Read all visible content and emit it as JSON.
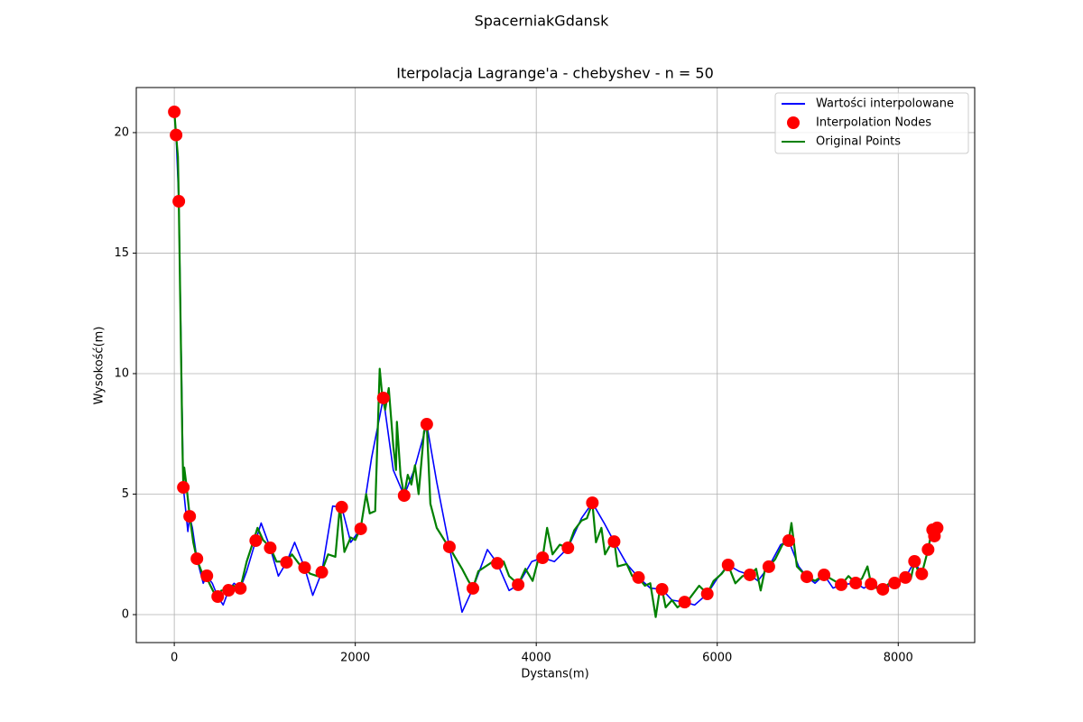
{
  "chart_data": {
    "type": "line",
    "suptitle": "SpacerniakGdansk",
    "title": "Iterpolacja Lagrange'a - chebyshev - n = 50",
    "xlabel": "Dystans(m)",
    "ylabel": "Wysokość(m)",
    "xlim": [
      -420,
      8845
    ],
    "ylim": [
      -1.16,
      21.87
    ],
    "xticks": [
      0,
      2000,
      4000,
      6000,
      8000
    ],
    "yticks": [
      0,
      5,
      10,
      15,
      20
    ],
    "grid": true,
    "legend": "upper right",
    "series": [
      {
        "name": "Wartości interpolowane",
        "color": "#0000ff",
        "mark": "line",
        "x": [
          0,
          20,
          50,
          100,
          150,
          170,
          200,
          250,
          320,
          360,
          420,
          480,
          540,
          600,
          660,
          730,
          800,
          900,
          960,
          1060,
          1150,
          1240,
          1330,
          1440,
          1530,
          1630,
          1750,
          1850,
          1950,
          2060,
          2180,
          2310,
          2420,
          2540,
          2650,
          2790,
          2900,
          3040,
          3180,
          3300,
          3460,
          3570,
          3700,
          3800,
          3950,
          4070,
          4200,
          4350,
          4500,
          4620,
          4750,
          4860,
          5000,
          5130,
          5260,
          5390,
          5500,
          5640,
          5750,
          5890,
          6000,
          6120,
          6240,
          6360,
          6450,
          6570,
          6700,
          6790,
          6900,
          6990,
          7080,
          7180,
          7280,
          7370,
          7530,
          7620,
          7700,
          7830,
          7960,
          8080,
          8180,
          8260,
          8330,
          8380,
          8400,
          8430
        ],
        "values": [
          20.86,
          19.9,
          17.15,
          5.28,
          3.45,
          4.08,
          3.6,
          2.32,
          1.3,
          1.61,
          1.3,
          0.75,
          0.4,
          1.01,
          1.3,
          1.09,
          1.8,
          3.07,
          3.8,
          2.77,
          1.6,
          2.17,
          3.0,
          1.95,
          0.8,
          1.76,
          4.5,
          4.46,
          3.0,
          3.56,
          6.5,
          8.99,
          6.0,
          4.94,
          6.0,
          7.9,
          5.5,
          2.81,
          0.1,
          1.09,
          2.7,
          2.13,
          1.0,
          1.24,
          2.2,
          2.36,
          2.2,
          2.77,
          4.0,
          4.64,
          3.8,
          3.03,
          2.1,
          1.54,
          1.1,
          1.05,
          0.6,
          0.52,
          0.4,
          0.86,
          1.5,
          2.06,
          1.8,
          1.65,
          1.4,
          1.99,
          2.9,
          3.07,
          2.0,
          1.57,
          1.3,
          1.65,
          1.1,
          1.24,
          1.31,
          1.1,
          1.27,
          1.05,
          1.31,
          1.54,
          2.21,
          1.69,
          2.7,
          3.52,
          3.26,
          3.6
        ]
      },
      {
        "name": "Interpolation Nodes",
        "color": "#ff0000",
        "mark": "scatter",
        "x": [
          0,
          20,
          50,
          100,
          170,
          250,
          360,
          480,
          600,
          730,
          900,
          1060,
          1240,
          1440,
          1630,
          1850,
          2060,
          2310,
          2540,
          2790,
          3040,
          3300,
          3570,
          3800,
          4070,
          4350,
          4620,
          4860,
          5130,
          5390,
          5640,
          5890,
          6120,
          6360,
          6570,
          6790,
          6990,
          7180,
          7370,
          7530,
          7700,
          7830,
          7960,
          8080,
          8180,
          8260,
          8330,
          8380,
          8400,
          8430
        ],
        "values": [
          20.86,
          19.9,
          17.15,
          5.28,
          4.08,
          2.32,
          1.61,
          0.75,
          1.01,
          1.09,
          3.07,
          2.77,
          2.17,
          1.95,
          1.76,
          4.46,
          3.56,
          8.99,
          4.94,
          7.9,
          2.81,
          1.09,
          2.13,
          1.24,
          2.36,
          2.77,
          4.64,
          3.03,
          1.54,
          1.05,
          0.52,
          0.86,
          2.06,
          1.65,
          1.99,
          3.07,
          1.57,
          1.65,
          1.24,
          1.31,
          1.27,
          1.05,
          1.31,
          1.54,
          2.21,
          1.69,
          2.7,
          3.52,
          3.26,
          3.6
        ]
      },
      {
        "name": "Original Points",
        "color": "#008000",
        "mark": "line",
        "x": [
          0,
          20,
          40,
          50,
          70,
          90,
          100,
          110,
          130,
          170,
          210,
          250,
          300,
          350,
          400,
          440,
          480,
          520,
          600,
          650,
          730,
          800,
          870,
          920,
          980,
          1060,
          1130,
          1200,
          1240,
          1300,
          1380,
          1440,
          1500,
          1580,
          1630,
          1700,
          1780,
          1830,
          1880,
          1950,
          2000,
          2060,
          2120,
          2160,
          2220,
          2270,
          2300,
          2330,
          2370,
          2420,
          2450,
          2460,
          2500,
          2540,
          2580,
          2620,
          2660,
          2700,
          2760,
          2790,
          2830,
          2900,
          3000,
          3040,
          3100,
          3180,
          3250,
          3300,
          3360,
          3440,
          3520,
          3570,
          3640,
          3700,
          3760,
          3800,
          3880,
          3960,
          4030,
          4070,
          4120,
          4180,
          4260,
          4350,
          4420,
          4500,
          4560,
          4620,
          4660,
          4720,
          4760,
          4820,
          4860,
          4900,
          5000,
          5060,
          5130,
          5200,
          5260,
          5320,
          5360,
          5390,
          5430,
          5500,
          5560,
          5640,
          5700,
          5800,
          5890,
          5960,
          6050,
          6120,
          6200,
          6280,
          6360,
          6430,
          6480,
          6540,
          6570,
          6640,
          6720,
          6790,
          6820,
          6880,
          6990,
          7080,
          7180,
          7250,
          7370,
          7450,
          7530,
          7600,
          7660,
          7700,
          7760,
          7830,
          7900,
          7960,
          8080,
          8140,
          8180,
          8230,
          8260,
          8330,
          8360,
          8380,
          8400,
          8430
        ],
        "values": [
          20.9,
          19.9,
          19.0,
          17.1,
          12,
          7,
          5.3,
          6.1,
          5.5,
          4.1,
          3.0,
          2.3,
          1.8,
          1.6,
          1.2,
          0.9,
          0.75,
          1.0,
          1.0,
          1.2,
          1.1,
          2.2,
          3.0,
          3.6,
          3.1,
          2.8,
          2.2,
          2.2,
          2.2,
          2.5,
          2.1,
          1.95,
          1.7,
          1.6,
          1.8,
          2.5,
          2.4,
          4.5,
          2.6,
          3.2,
          3.1,
          3.6,
          5.0,
          4.2,
          4.3,
          10.2,
          9.0,
          8.5,
          9.4,
          7.0,
          6.0,
          8.0,
          5.8,
          4.94,
          5.8,
          5.4,
          6.2,
          5.0,
          7.6,
          7.9,
          4.6,
          3.6,
          3.0,
          2.8,
          2.4,
          1.9,
          1.4,
          1.1,
          1.8,
          2.0,
          2.2,
          2.13,
          2.2,
          1.6,
          1.4,
          1.24,
          1.9,
          1.4,
          2.4,
          2.36,
          3.6,
          2.5,
          2.9,
          2.77,
          3.5,
          3.9,
          4.0,
          4.64,
          3.0,
          3.6,
          2.5,
          2.9,
          3.1,
          2.0,
          2.1,
          1.6,
          1.54,
          1.2,
          1.3,
          -0.1,
          0.9,
          1.05,
          0.3,
          0.6,
          0.3,
          0.52,
          0.7,
          1.2,
          0.86,
          1.4,
          1.7,
          2.06,
          1.3,
          1.6,
          1.65,
          1.9,
          1.0,
          2.1,
          1.99,
          2.3,
          2.9,
          3.07,
          3.8,
          2.0,
          1.57,
          1.4,
          1.65,
          1.5,
          1.24,
          1.6,
          1.31,
          1.5,
          2.0,
          1.27,
          1.1,
          1.05,
          1.3,
          1.31,
          1.54,
          1.5,
          2.21,
          1.7,
          1.69,
          2.7,
          3.3,
          3.52,
          3.26,
          3.6
        ]
      }
    ]
  }
}
